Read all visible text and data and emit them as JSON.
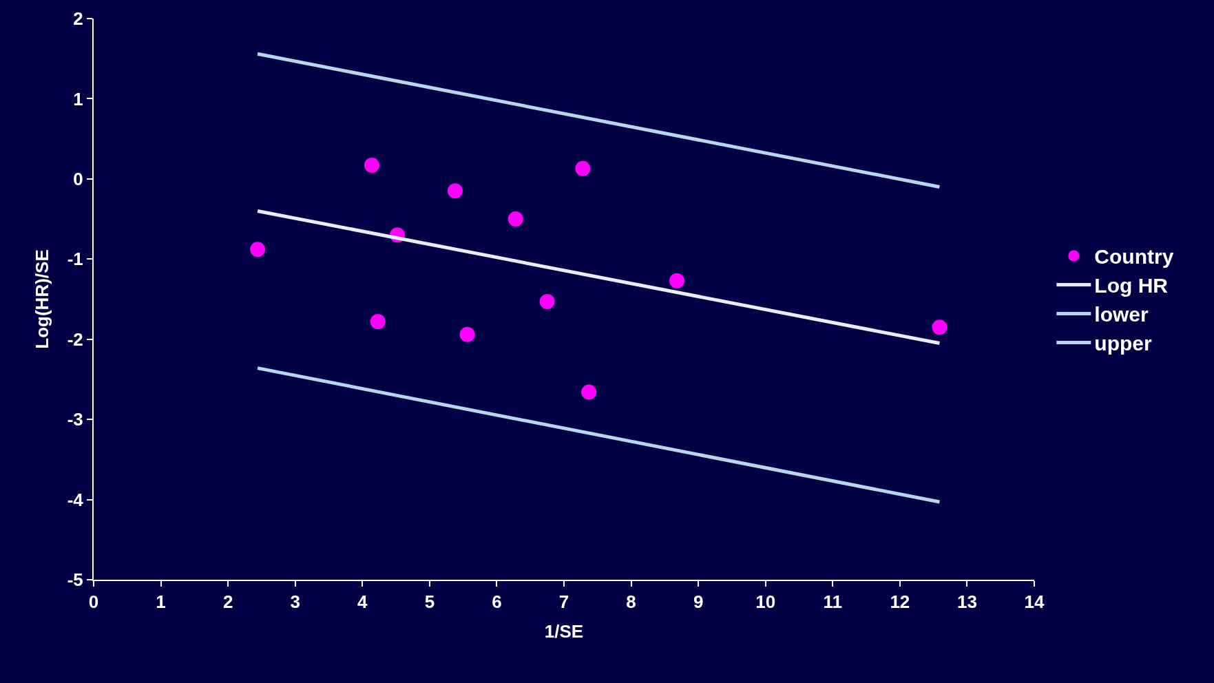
{
  "chart_data": {
    "type": "scatter",
    "xlabel": "1/SE",
    "ylabel": "Log(HR)/SE",
    "xlim": [
      0,
      14
    ],
    "xticks": [
      0,
      1,
      2,
      3,
      4,
      5,
      6,
      7,
      8,
      9,
      10,
      11,
      12,
      13,
      14
    ],
    "ylim": [
      -5,
      2
    ],
    "yticks": [
      -5,
      -4,
      -3,
      -2,
      -1,
      0,
      1,
      2
    ],
    "grid": false,
    "legend": "right",
    "series": [
      {
        "name": "Country",
        "marker": "circle",
        "color": "#ff00ff",
        "x": [
          2.44,
          4.14,
          4.52,
          5.38,
          4.23,
          5.56,
          6.28,
          7.28,
          6.75,
          7.37,
          8.68,
          12.59
        ],
        "values": [
          -0.88,
          0.17,
          -0.7,
          -0.15,
          -1.78,
          -1.94,
          -0.5,
          0.13,
          -1.53,
          -2.66,
          -1.27,
          -1.85
        ]
      },
      {
        "name": "Log HR",
        "type": "line",
        "marker": "none",
        "color": "#e6eef8",
        "x": [
          2.44,
          12.59
        ],
        "values": [
          -0.4,
          -2.05
        ]
      },
      {
        "name": "lower",
        "type": "line",
        "marker": "none",
        "color": "#b4d8e8",
        "x": [
          2.44,
          12.59
        ],
        "values": [
          -2.36,
          -4.03
        ]
      },
      {
        "name": "upper",
        "type": "line",
        "marker": "none",
        "color": "#b4d8e8",
        "x": [
          2.44,
          12.59
        ],
        "values": [
          1.56,
          -0.1
        ]
      }
    ]
  }
}
